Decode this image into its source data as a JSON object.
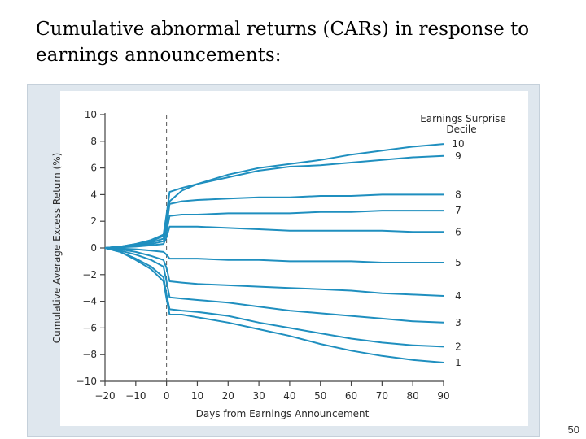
{
  "slide": {
    "title_line1": "Cumulative abnormal returns (CARs) in response to",
    "title_line2": "earnings announcements:",
    "page_number": "50"
  },
  "chart_data": {
    "type": "line",
    "title": "",
    "xlabel": "Days from Earnings Announcement",
    "ylabel": "Cumulative Average Excess Return (%)",
    "xlim": [
      -20,
      90
    ],
    "ylim": [
      -10,
      10
    ],
    "x_ticks": [
      -20,
      -10,
      0,
      10,
      20,
      30,
      40,
      50,
      60,
      70,
      80,
      90
    ],
    "y_ticks": [
      10,
      8,
      6,
      4,
      2,
      0,
      -2,
      -4,
      -6,
      -8,
      -10
    ],
    "event_line_x": 0,
    "legend_title": [
      "Earnings Surprise",
      "Decile"
    ],
    "line_color": "#1f8fbf",
    "x": [
      -20,
      -15,
      -10,
      -5,
      -1,
      0,
      1,
      5,
      10,
      20,
      30,
      40,
      50,
      60,
      70,
      80,
      90
    ],
    "series": [
      {
        "name": "10",
        "values": [
          0,
          0.1,
          0.3,
          0.6,
          1.0,
          2.5,
          4.2,
          4.5,
          4.8,
          5.5,
          6.0,
          6.3,
          6.6,
          7.0,
          7.3,
          7.6,
          7.8
        ]
      },
      {
        "name": "9",
        "values": [
          0,
          0.1,
          0.3,
          0.5,
          0.9,
          2.2,
          3.5,
          4.3,
          4.8,
          5.3,
          5.8,
          6.1,
          6.2,
          6.4,
          6.6,
          6.8,
          6.9
        ]
      },
      {
        "name": "8",
        "values": [
          0,
          0.1,
          0.2,
          0.4,
          0.7,
          1.6,
          3.3,
          3.5,
          3.6,
          3.7,
          3.8,
          3.8,
          3.9,
          3.9,
          4.0,
          4.0,
          4.0
        ]
      },
      {
        "name": "7",
        "values": [
          0,
          0.1,
          0.2,
          0.3,
          0.5,
          1.2,
          2.4,
          2.5,
          2.5,
          2.6,
          2.6,
          2.6,
          2.7,
          2.7,
          2.8,
          2.8,
          2.8
        ]
      },
      {
        "name": "6",
        "values": [
          0,
          0.05,
          0.1,
          0.2,
          0.3,
          0.8,
          1.6,
          1.6,
          1.6,
          1.5,
          1.4,
          1.3,
          1.3,
          1.3,
          1.3,
          1.2,
          1.2
        ]
      },
      {
        "name": "5",
        "values": [
          0,
          -0.05,
          -0.1,
          -0.2,
          -0.3,
          -0.5,
          -0.8,
          -0.8,
          -0.8,
          -0.9,
          -0.9,
          -1.0,
          -1.0,
          -1.0,
          -1.1,
          -1.1,
          -1.1
        ]
      },
      {
        "name": "4",
        "values": [
          0,
          -0.1,
          -0.3,
          -0.6,
          -0.9,
          -1.5,
          -2.5,
          -2.6,
          -2.7,
          -2.8,
          -2.9,
          -3.0,
          -3.1,
          -3.2,
          -3.4,
          -3.5,
          -3.6
        ]
      },
      {
        "name": "3",
        "values": [
          0,
          -0.2,
          -0.5,
          -0.9,
          -1.4,
          -2.5,
          -3.7,
          -3.8,
          -3.9,
          -4.1,
          -4.4,
          -4.7,
          -4.9,
          -5.1,
          -5.3,
          -5.5,
          -5.6
        ]
      },
      {
        "name": "2",
        "values": [
          0,
          -0.3,
          -0.8,
          -1.4,
          -2.2,
          -3.5,
          -4.6,
          -4.7,
          -4.8,
          -5.1,
          -5.6,
          -6.0,
          -6.4,
          -6.8,
          -7.1,
          -7.3,
          -7.4
        ]
      },
      {
        "name": "1",
        "values": [
          0,
          -0.3,
          -0.9,
          -1.6,
          -2.5,
          -3.8,
          -5.0,
          -5.0,
          -5.2,
          -5.6,
          -6.1,
          -6.6,
          -7.2,
          -7.7,
          -8.1,
          -8.4,
          -8.6
        ]
      }
    ]
  }
}
